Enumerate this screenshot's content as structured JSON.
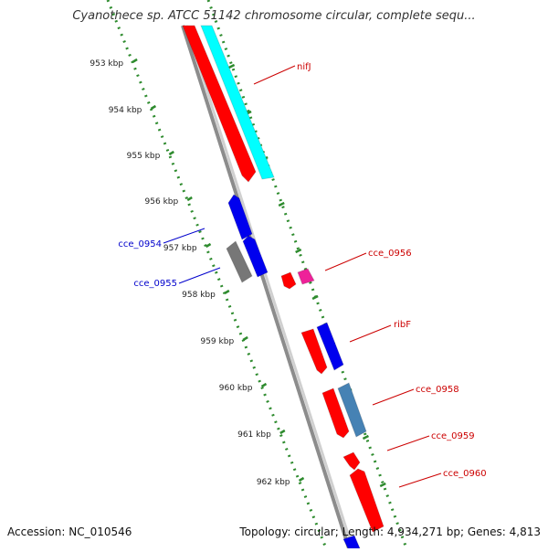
{
  "viewer": {
    "title": "Cyanothece sp. ATCC 51142 chromosome circular, complete sequ...",
    "accession_label": "Accession:",
    "accession": "NC_010546",
    "topology_label": "Topology:",
    "topology": "circular",
    "length_label": "Length:",
    "length": "4,934,271 bp",
    "genes_label": "Genes:",
    "genes": "4,813"
  },
  "ruler": {
    "tick_labels": [
      "953 kbp",
      "954 kbp",
      "955 kbp",
      "956 kbp",
      "957 kbp",
      "958 kbp",
      "959 kbp",
      "960 kbp",
      "961 kbp",
      "962 kbp"
    ]
  },
  "genes": {
    "forward_labels": [
      "nifJ",
      "cce_0956",
      "ribF",
      "cce_0958",
      "cce_0959",
      "cce_0960"
    ],
    "reverse_labels": [
      "cce_0954",
      "cce_0955"
    ]
  },
  "colors": {
    "backbone": "#8c8c8c",
    "ruler": "#2e8b2e",
    "forward_label": "#cc0000",
    "reverse_label": "#0000cc",
    "gene_red": "#ff0000",
    "gene_cyan": "#00ffff",
    "gene_blue": "#0000ee",
    "gene_gray": "#777777",
    "gene_magenta": "#ee2299",
    "gene_steelblue": "#4682b4"
  }
}
